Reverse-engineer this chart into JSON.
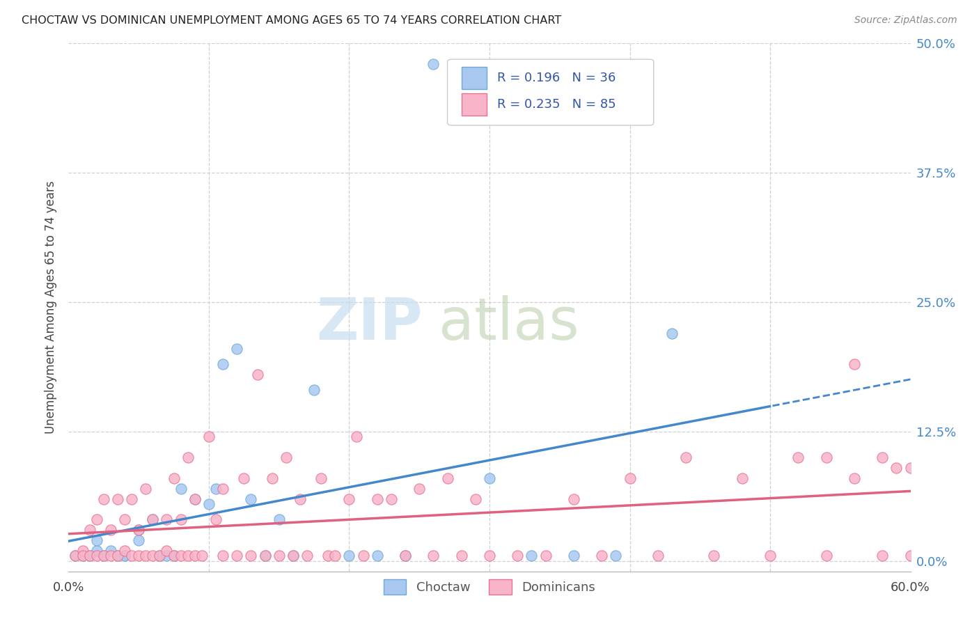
{
  "title": "CHOCTAW VS DOMINICAN UNEMPLOYMENT AMONG AGES 65 TO 74 YEARS CORRELATION CHART",
  "source": "Source: ZipAtlas.com",
  "ylabel": "Unemployment Among Ages 65 to 74 years",
  "xlim": [
    0.0,
    0.6
  ],
  "ylim": [
    -0.01,
    0.5
  ],
  "ytick_labels": [
    "0.0%",
    "12.5%",
    "25.0%",
    "37.5%",
    "50.0%"
  ],
  "ytick_vals": [
    0.0,
    0.125,
    0.25,
    0.375,
    0.5
  ],
  "grid_color": "#d0d0d0",
  "bg_color": "#ffffff",
  "choctaw_color": "#a8c8f0",
  "dominican_color": "#f8b4c8",
  "choctaw_edge_color": "#6aaad8",
  "dominican_edge_color": "#e87090",
  "choctaw_line_color": "#4488cc",
  "dominican_line_color": "#e06080",
  "legend_text_color": "#3355aa",
  "choctaw_R": "0.196",
  "choctaw_N": "36",
  "dominican_R": "0.235",
  "dominican_N": "85",
  "legend_label_1": "Choctaw",
  "legend_label_2": "Dominicans",
  "choctaw_line_solid_end": 0.5,
  "choctaw_x": [
    0.005,
    0.01,
    0.015,
    0.02,
    0.02,
    0.025,
    0.03,
    0.035,
    0.04,
    0.04,
    0.05,
    0.05,
    0.06,
    0.065,
    0.07,
    0.075,
    0.08,
    0.09,
    0.1,
    0.105,
    0.11,
    0.12,
    0.13,
    0.14,
    0.15,
    0.16,
    0.175,
    0.2,
    0.22,
    0.24,
    0.26,
    0.3,
    0.33,
    0.36,
    0.39,
    0.43
  ],
  "choctaw_y": [
    0.005,
    0.005,
    0.005,
    0.01,
    0.02,
    0.005,
    0.01,
    0.005,
    0.005,
    0.005,
    0.02,
    0.03,
    0.04,
    0.005,
    0.005,
    0.005,
    0.07,
    0.06,
    0.055,
    0.07,
    0.19,
    0.205,
    0.06,
    0.005,
    0.04,
    0.005,
    0.165,
    0.005,
    0.005,
    0.005,
    0.48,
    0.08,
    0.005,
    0.005,
    0.005,
    0.22
  ],
  "dominican_x": [
    0.005,
    0.01,
    0.01,
    0.015,
    0.015,
    0.02,
    0.02,
    0.025,
    0.025,
    0.03,
    0.03,
    0.035,
    0.035,
    0.04,
    0.04,
    0.045,
    0.045,
    0.05,
    0.05,
    0.055,
    0.055,
    0.06,
    0.06,
    0.065,
    0.07,
    0.07,
    0.075,
    0.075,
    0.08,
    0.08,
    0.085,
    0.085,
    0.09,
    0.09,
    0.095,
    0.1,
    0.105,
    0.11,
    0.11,
    0.12,
    0.125,
    0.13,
    0.135,
    0.14,
    0.145,
    0.15,
    0.155,
    0.16,
    0.165,
    0.17,
    0.18,
    0.185,
    0.19,
    0.2,
    0.205,
    0.21,
    0.22,
    0.23,
    0.24,
    0.25,
    0.26,
    0.27,
    0.28,
    0.29,
    0.3,
    0.32,
    0.34,
    0.36,
    0.38,
    0.4,
    0.42,
    0.44,
    0.46,
    0.48,
    0.5,
    0.52,
    0.54,
    0.56,
    0.58,
    0.59,
    0.6,
    0.54,
    0.56,
    0.58,
    0.6
  ],
  "dominican_y": [
    0.005,
    0.01,
    0.005,
    0.005,
    0.03,
    0.005,
    0.04,
    0.005,
    0.06,
    0.005,
    0.03,
    0.005,
    0.06,
    0.01,
    0.04,
    0.005,
    0.06,
    0.005,
    0.03,
    0.005,
    0.07,
    0.005,
    0.04,
    0.005,
    0.01,
    0.04,
    0.005,
    0.08,
    0.005,
    0.04,
    0.005,
    0.1,
    0.005,
    0.06,
    0.005,
    0.12,
    0.04,
    0.005,
    0.07,
    0.005,
    0.08,
    0.005,
    0.18,
    0.005,
    0.08,
    0.005,
    0.1,
    0.005,
    0.06,
    0.005,
    0.08,
    0.005,
    0.005,
    0.06,
    0.12,
    0.005,
    0.06,
    0.06,
    0.005,
    0.07,
    0.005,
    0.08,
    0.005,
    0.06,
    0.005,
    0.005,
    0.005,
    0.06,
    0.005,
    0.08,
    0.005,
    0.1,
    0.005,
    0.08,
    0.005,
    0.1,
    0.005,
    0.08,
    0.005,
    0.09,
    0.005,
    0.1,
    0.19,
    0.1,
    0.09
  ]
}
